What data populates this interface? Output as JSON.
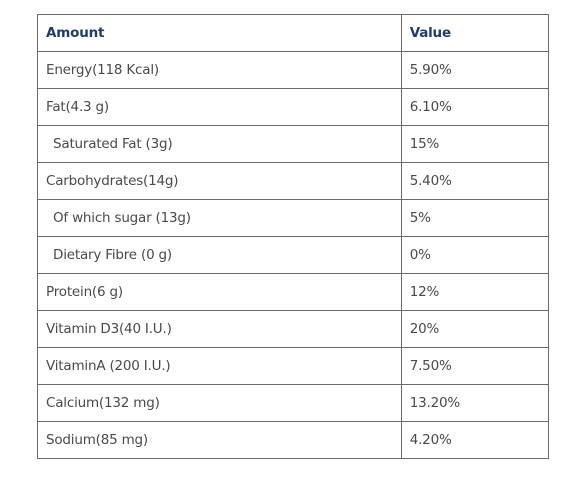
{
  "table": {
    "headers": {
      "amount": "Amount",
      "value": "Value"
    },
    "rows": [
      {
        "amount": "Energy(118 Kcal)",
        "value": "5.90%"
      },
      {
        "amount": "Fat(4.3 g)",
        "value": "6.10%"
      },
      {
        "amount": " Saturated Fat (3g)",
        "value": "15%"
      },
      {
        "amount": "Carbohydrates(14g)",
        "value": "5.40%"
      },
      {
        "amount": " Of which sugar (13g)",
        "value": "5%"
      },
      {
        "amount": " Dietary Fibre (0 g)",
        "value": "0%"
      },
      {
        "amount": "Protein(6 g)",
        "value": "12%"
      },
      {
        "amount": "Vitamin D3(40 I.U.)",
        "value": "20%"
      },
      {
        "amount": "VitaminA (200 I.U.)",
        "value": "7.50%"
      },
      {
        "amount": "Calcium(132 mg)",
        "value": "13.20%"
      },
      {
        "amount": "Sodium(85 mg)",
        "value": "4.20%"
      }
    ]
  }
}
